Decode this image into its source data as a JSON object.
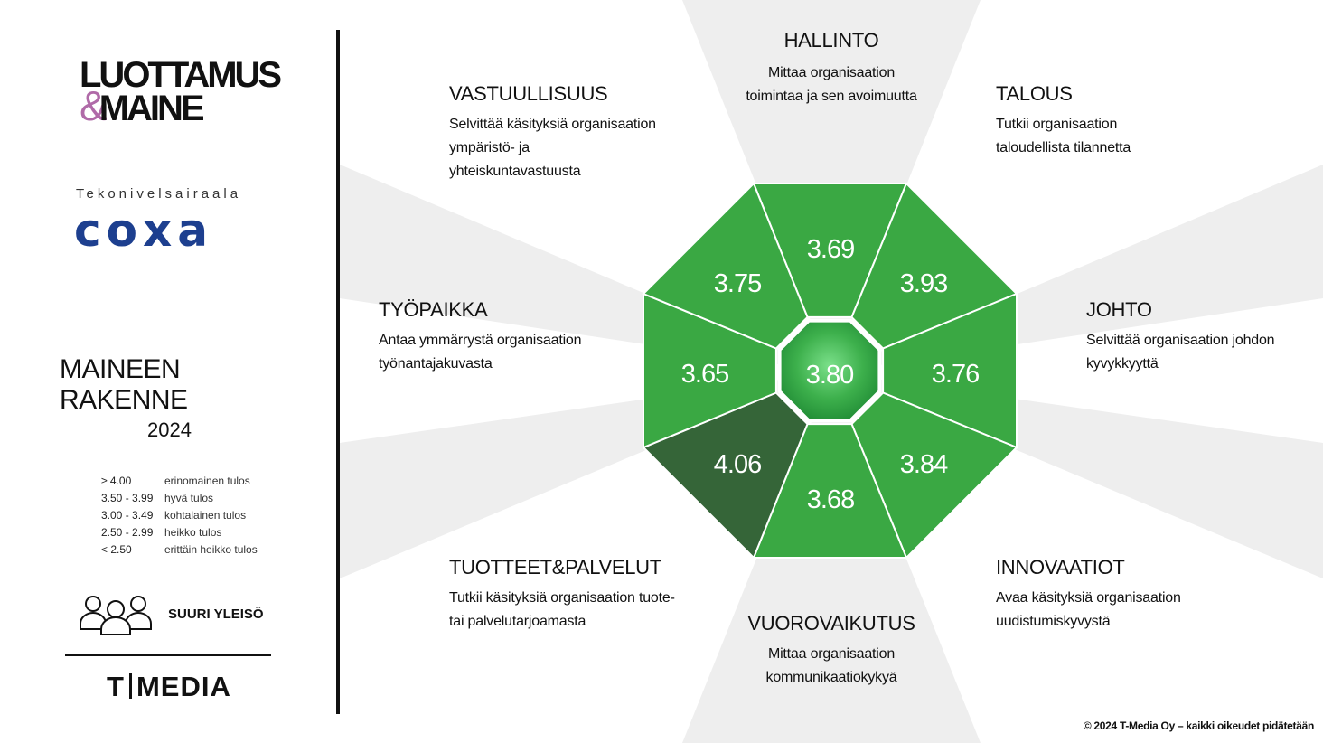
{
  "sidebar": {
    "logo_line1": "LUOTTAMUS",
    "logo_amp": "&",
    "logo_line2": "MAINE",
    "client_subtitle": "Tekonivelsairaala",
    "client_name": "coxa",
    "section_title": "MAINEEN RAKENNE",
    "year": "2024",
    "legend": [
      {
        "range": "≥ 4.00",
        "label": "erinomainen tulos"
      },
      {
        "range": "3.50 - 3.99",
        "label": "hyvä tulos"
      },
      {
        "range": "3.00 - 3.49",
        "label": "kohtalainen tulos"
      },
      {
        "range": "2.50 - 2.99",
        "label": "heikko tulos"
      },
      {
        "range": "< 2.50",
        "label": "erittäin heikko tulos"
      }
    ],
    "audience_label": "SUURI YLEISÖ",
    "publisher_left": "T",
    "publisher_right": "MEDIA"
  },
  "dimensions": {
    "hallinto": {
      "title": "HALLINTO",
      "line1": "Mittaa organisaation",
      "line2": "toimintaa ja sen avoimuutta",
      "score": "3.69"
    },
    "talous": {
      "title": "TALOUS",
      "line1": "Tutkii organisaation",
      "line2": "taloudellista tilannetta",
      "score": "3.93"
    },
    "johto": {
      "title": "JOHTO",
      "line1": "Selvittää organisaation johdon",
      "line2": "kyvykkyyttä",
      "score": "3.76"
    },
    "innovaatiot": {
      "title": "INNOVAATIOT",
      "line1": "Avaa käsityksiä organisaation",
      "line2": "uudistumiskyvystä",
      "score": "3.84"
    },
    "vuorovaikutus": {
      "title": "VUOROVAIKUTUS",
      "line1": "Mittaa organisaation",
      "line2": "kommunikaatiokykyä",
      "score": "3.68"
    },
    "tuotteet": {
      "title": "TUOTTEET&PALVELUT",
      "line1": "Tutkii käsityksiä organisaation tuote-",
      "line2": "tai palvelutarjoamasta",
      "score": "4.06"
    },
    "tyopaikka": {
      "title": "TYÖPAIKKA",
      "line1": "Antaa ymmärrystä organisaation",
      "line2": "työnantajakuvasta",
      "score": "3.65"
    },
    "vastuullisuus": {
      "title": "VASTUULLISUUS",
      "line1": "Selvittää käsityksiä organisaation",
      "line2": "ympäristö- ja",
      "line3": "yhteiskuntavastuusta",
      "score": "3.75"
    }
  },
  "overall_score": "3.80",
  "colors": {
    "segment_green": "#3aa843",
    "segment_dark": "#356538",
    "ray_gray": "#eeeeee",
    "brand_purple": "#b06aa8",
    "client_blue": "#1d3f8f"
  },
  "icons": [
    "people-group-icon"
  ],
  "copyright": "© 2024 T-Media Oy – kaikki oikeudet pidätetään"
}
